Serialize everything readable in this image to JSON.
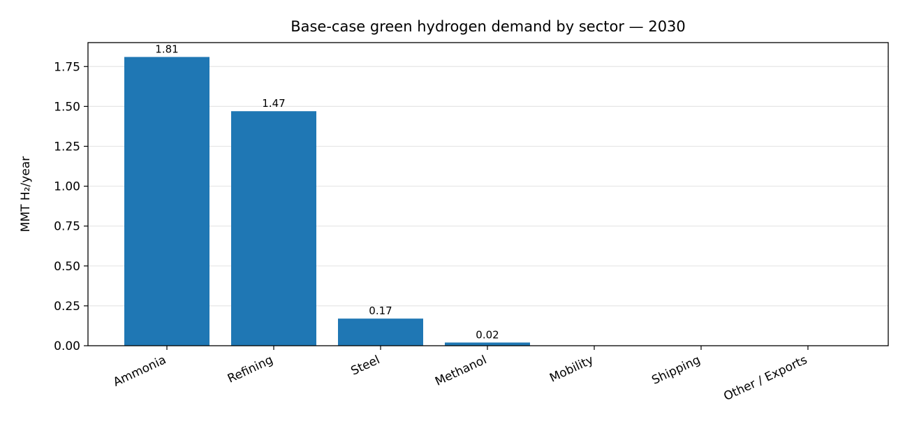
{
  "chart_data": {
    "type": "bar",
    "title": "Base-case green hydrogen demand by sector — 2030",
    "xlabel": "",
    "ylabel": "MMT H₂/year",
    "categories": [
      "Ammonia",
      "Refining",
      "Steel",
      "Methanol",
      "Mobility",
      "Shipping",
      "Other / Exports"
    ],
    "values": [
      1.81,
      1.47,
      0.17,
      0.02,
      0,
      0,
      0
    ],
    "data_labels": [
      "1.81",
      "1.47",
      "0.17",
      "0.02",
      "",
      "",
      ""
    ],
    "ylim": [
      0,
      1.9
    ],
    "yticks": [
      0.0,
      0.25,
      0.5,
      0.75,
      1.0,
      1.25,
      1.5,
      1.75
    ],
    "ytick_labels": [
      "0.00",
      "0.25",
      "0.50",
      "0.75",
      "1.00",
      "1.25",
      "1.50",
      "1.75"
    ],
    "grid": "y",
    "bar_color": "#1f77b4",
    "grid_color": "#e6e6e6"
  }
}
